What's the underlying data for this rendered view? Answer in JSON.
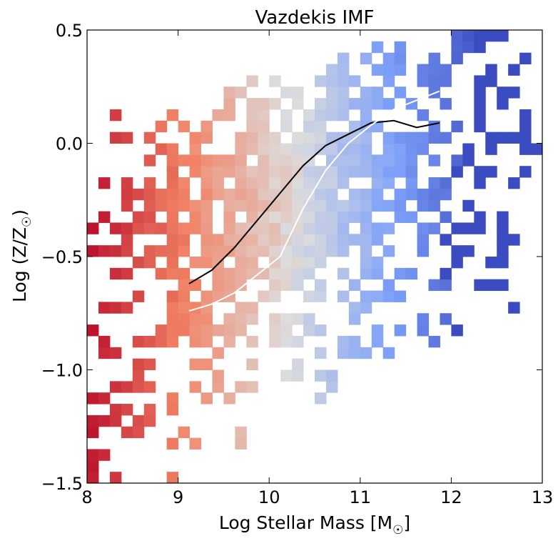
{
  "chart_data": {
    "type": "heatmap",
    "title": "Vazdekis IMF",
    "xlabel": "Log Stellar Mass [M",
    "xlabel_sub": "☉",
    "xlabel_end": "]",
    "ylabel": "Log (Z/Z",
    "ylabel_sub": "☉",
    "ylabel_end": ")",
    "xlim": [
      8,
      13
    ],
    "ylim": [
      -1.5,
      0.5
    ],
    "xticks": [
      8,
      9,
      10,
      11,
      12,
      13
    ],
    "xtick_labels": [
      "8",
      "9",
      "10",
      "11",
      "12",
      "13"
    ],
    "yticks": [
      -1.5,
      -1.0,
      -0.5,
      0.0,
      0.5
    ],
    "ytick_labels": [
      "−1.5",
      "−1.0",
      "−0.5",
      "0.0",
      "0.5"
    ],
    "grid": false,
    "colormap": "coolwarm_r",
    "bin_size": {
      "x": 0.125,
      "y": 0.05
    },
    "series": [
      {
        "name": "black median line",
        "color": "#000000",
        "x": [
          9.12,
          9.37,
          9.62,
          9.87,
          10.12,
          10.37,
          10.62,
          10.87,
          11.12,
          11.37,
          11.62,
          11.87
        ],
        "y": [
          -0.62,
          -0.56,
          -0.46,
          -0.34,
          -0.22,
          -0.1,
          -0.01,
          0.04,
          0.09,
          0.1,
          0.07,
          0.09
        ]
      },
      {
        "name": "white median line",
        "color": "#ffffff",
        "x": [
          9.12,
          9.37,
          9.62,
          9.87,
          10.12,
          10.37,
          10.62,
          10.87,
          11.12,
          11.37,
          11.62,
          11.87
        ],
        "y": [
          -0.74,
          -0.71,
          -0.66,
          -0.58,
          -0.5,
          -0.29,
          -0.12,
          0.0,
          0.08,
          0.15,
          0.19,
          0.23
        ]
      }
    ]
  }
}
